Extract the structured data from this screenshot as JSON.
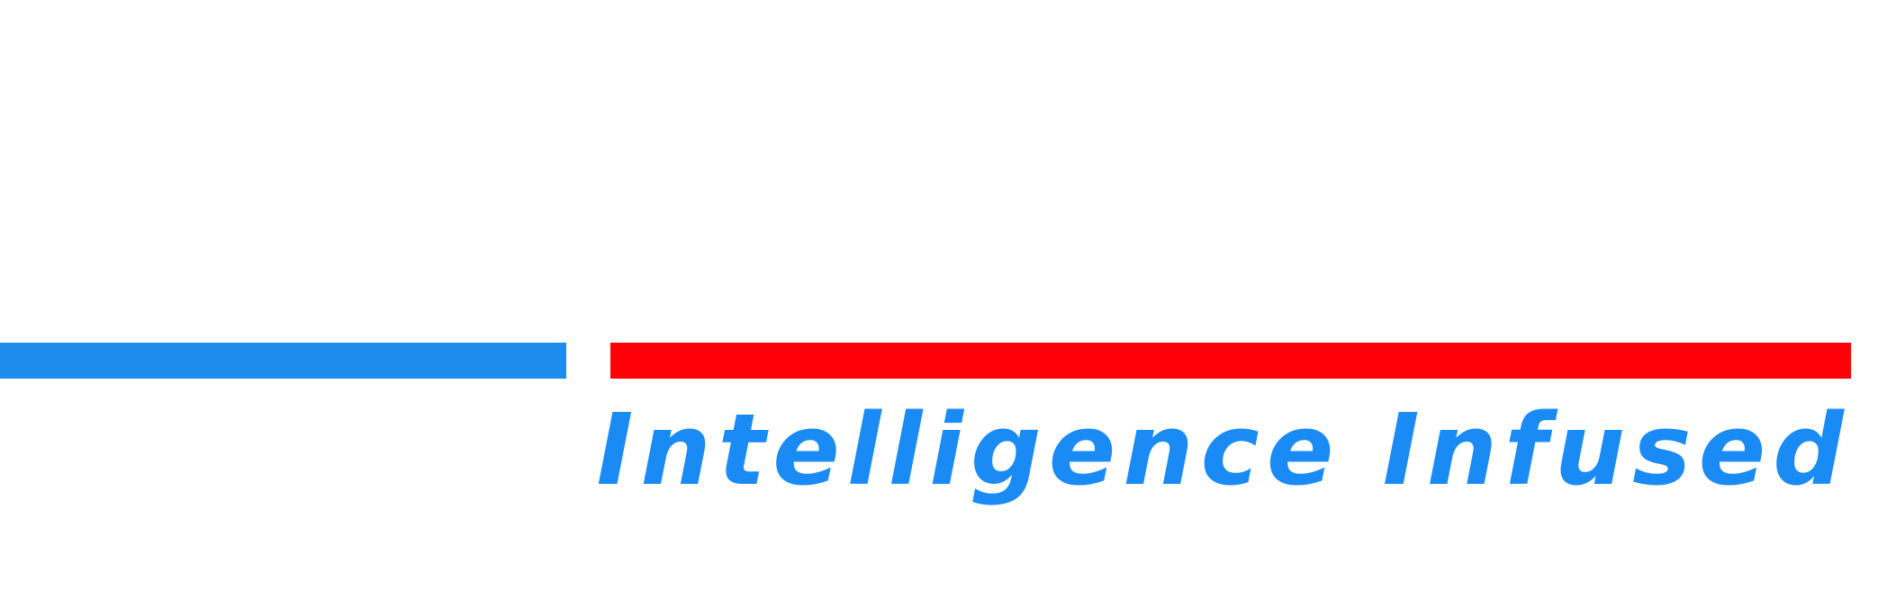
{
  "tagline": "Intelligence Infused",
  "colors": {
    "blue_bar": "#1e8ceb",
    "red_bar": "#ff0008",
    "tagline": "#1a8bf5",
    "background": "#ffffff"
  }
}
